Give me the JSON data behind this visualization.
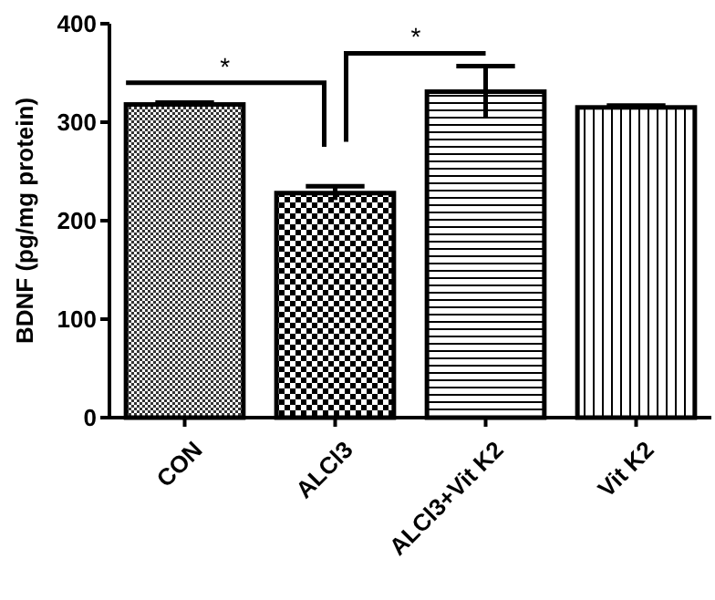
{
  "chart_data": {
    "type": "bar",
    "ylabel": "BDNF (pg/mg protein)",
    "categories": [
      "CON",
      "ALCl3",
      "ALCl3+Vit K2",
      "Vit K2"
    ],
    "values": [
      318,
      228,
      331,
      315
    ],
    "errors": [
      2,
      7,
      26,
      2
    ],
    "color": "#000000",
    "ylim": [
      0,
      400
    ],
    "yticks": [
      0,
      100,
      200,
      300,
      400
    ],
    "annotations": [
      "*",
      "*"
    ]
  }
}
